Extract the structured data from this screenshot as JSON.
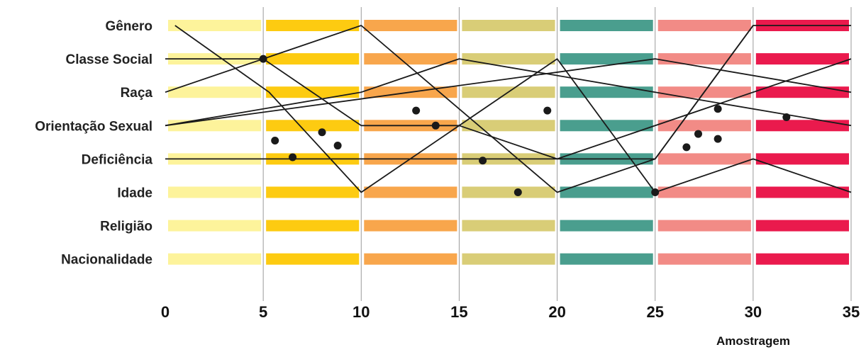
{
  "chart_data": {
    "type": "line",
    "xlabel": "Amostragem",
    "xlim": [
      0,
      35
    ],
    "x_ticks": [
      0,
      5,
      10,
      15,
      20,
      25,
      30,
      35
    ],
    "categories": [
      "Gênero",
      "Classe Social",
      "Raça",
      "Orientação Sexual",
      "Deficiência",
      "Idade",
      "Religião",
      "Nacionalidade"
    ],
    "band_colors": [
      "#fdf39b",
      "#fdcb11",
      "#f8a64c",
      "#d9cd77",
      "#4a9e8e",
      "#f28b86",
      "#ea1a4d"
    ],
    "line_color": "#1a1a1a",
    "marker_color": "#1a1a1a",
    "grid": true,
    "series": [
      {
        "values": [
          [
            0.5,
            "Gênero"
          ],
          [
            5.3,
            "Raça"
          ],
          [
            10,
            "Idade"
          ],
          [
            20,
            "Classe Social"
          ],
          [
            25,
            "Idade"
          ],
          [
            30,
            "Deficiência"
          ],
          [
            35,
            "Idade"
          ]
        ]
      },
      {
        "values": [
          [
            0,
            "Classe Social"
          ],
          [
            5,
            "Classe Social"
          ],
          [
            10,
            "Orientação Sexual"
          ],
          [
            15,
            "Orientação Sexual"
          ],
          [
            20,
            "Deficiência"
          ],
          [
            25,
            "Deficiência"
          ],
          [
            30,
            "Gênero"
          ],
          [
            35,
            "Gênero"
          ]
        ]
      },
      {
        "values": [
          [
            0,
            "Raça"
          ],
          [
            10,
            "Gênero"
          ],
          [
            20,
            "Idade"
          ],
          [
            25,
            "Deficiência"
          ],
          [
            30,
            "Gênero"
          ]
        ]
      },
      {
        "values": [
          [
            0,
            "Orientação Sexual"
          ],
          [
            10,
            "Raça"
          ],
          [
            15,
            "Classe Social"
          ],
          [
            35,
            "Orientação Sexual"
          ]
        ]
      },
      {
        "values": [
          [
            0,
            "Orientação Sexual"
          ],
          [
            12.5,
            "Raça"
          ],
          [
            25,
            "Classe Social"
          ],
          [
            35,
            "Raça"
          ]
        ]
      },
      {
        "values": [
          [
            0,
            "Deficiência"
          ],
          [
            20,
            "Deficiência"
          ],
          [
            35,
            "Classe Social"
          ]
        ]
      }
    ],
    "markers": [
      [
        5,
        "Classe Social"
      ],
      [
        5.6,
        3.45
      ],
      [
        6.5,
        3.95
      ],
      [
        8,
        3.2
      ],
      [
        8.8,
        3.6
      ],
      [
        12.8,
        2.55
      ],
      [
        13.8,
        3.0
      ],
      [
        16.2,
        4.05
      ],
      [
        18,
        5.0
      ],
      [
        19.5,
        2.55
      ],
      [
        25,
        5.0
      ],
      [
        26.6,
        3.65
      ],
      [
        27.2,
        3.25
      ],
      [
        28.2,
        2.5
      ],
      [
        28.2,
        3.4
      ],
      [
        31.7,
        2.75
      ]
    ]
  }
}
